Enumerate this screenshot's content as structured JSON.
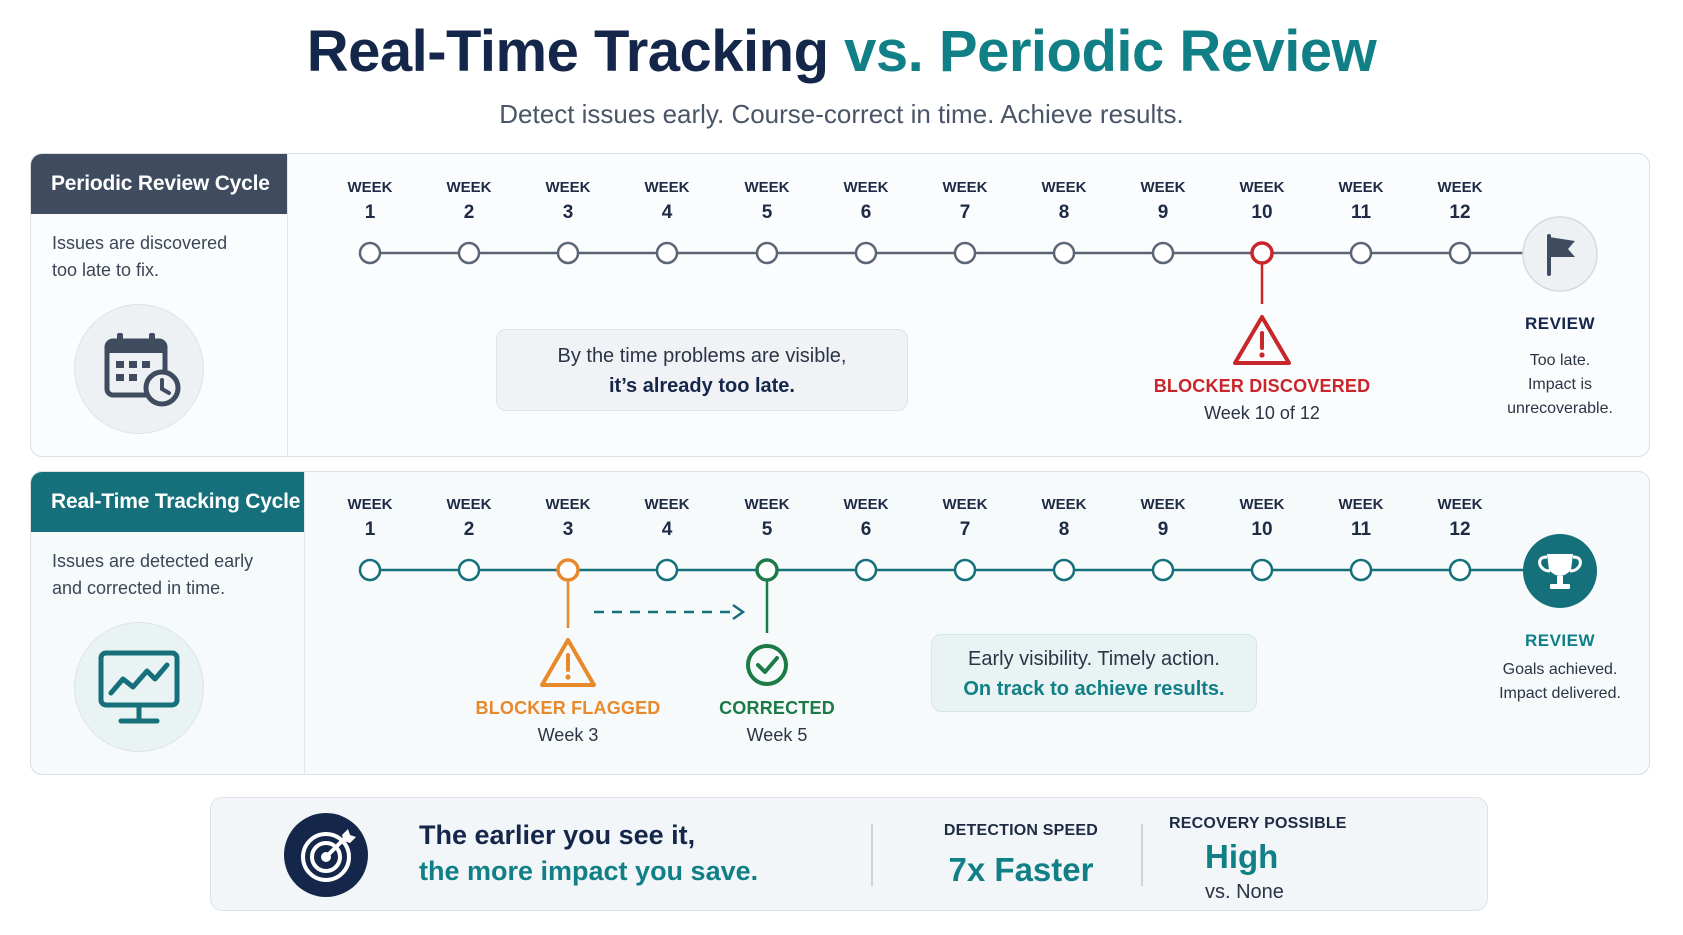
{
  "title": {
    "part1": "Real-Time Tracking",
    "part2": "vs. Periodic Review"
  },
  "subtitle": "Detect issues early. Course-correct in time. Achieve results.",
  "colors": {
    "navy": "#14274a",
    "teal": "#107f86",
    "red": "#c8262a",
    "orange": "#e8892b",
    "green": "#1c7a46",
    "gray": "#4a5568"
  },
  "week_label": "WEEK",
  "weeks": [
    "1",
    "2",
    "3",
    "4",
    "5",
    "6",
    "7",
    "8",
    "9",
    "10",
    "11",
    "12"
  ],
  "periodic": {
    "heading": "Periodic Review Cycle",
    "desc_line1": "Issues are discovered",
    "desc_line2": "too late to fix.",
    "icon": "calendar-clock-icon",
    "callout_line1": "By the time problems are visible,",
    "callout_line2": "it’s already too late.",
    "blocker_title": "BLOCKER DISCOVERED",
    "blocker_week": "Week 10 of 12",
    "review_title": "REVIEW",
    "review_line1": "Too late.",
    "review_line2": "Impact is",
    "review_line3": "unrecoverable.",
    "review_icon": "flag-icon"
  },
  "realtime": {
    "heading": "Real-Time Tracking Cycle",
    "desc_line1": "Issues are detected early",
    "desc_line2": "and corrected in time.",
    "icon": "monitor-chart-icon",
    "flagged_title": "BLOCKER FLAGGED",
    "flagged_week": "Week 3",
    "corrected_title": "CORRECTED",
    "corrected_week": "Week 5",
    "callout_line1": "Early visibility. Timely action.",
    "callout_line2": "On track to achieve results.",
    "review_title": "REVIEW",
    "review_line1": "Goals achieved.",
    "review_line2": "Impact delivered.",
    "review_icon": "trophy-icon"
  },
  "summary": {
    "icon": "target-icon",
    "line1": "The earlier you see it,",
    "line2": "the more impact you save.",
    "stat1_label": "DETECTION SPEED",
    "stat1_value": "7x Faster",
    "stat2_label": "RECOVERY POSSIBLE",
    "stat2_value": "High",
    "stat2_sub": "vs. None"
  }
}
